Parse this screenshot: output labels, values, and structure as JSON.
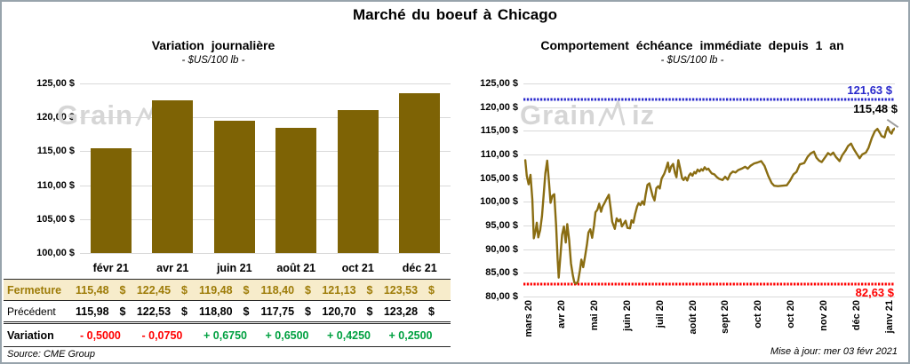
{
  "page": {
    "title": "Marché du boeuf à Chicago",
    "source": "Source: CME Group",
    "updated": "Mise à jour: mer 03 févr 2021",
    "watermark": "GrainWiz"
  },
  "colors": {
    "gold": "#7E6305",
    "gold_text": "#9E7C08",
    "line_gold": "#8A6D12",
    "blue": "#2929CC",
    "red": "#FF0000",
    "green": "#00A040",
    "cream": "#F7ECCB",
    "grid": "#D9D9D9",
    "watermark": "#D6D6D6",
    "frame": "#98A4AC"
  },
  "left_chart": {
    "title": "Variation journalière",
    "subtitle": "- $US/100 lb -",
    "y_ticks": [
      "125,00 $",
      "120,00 $",
      "115,00 $",
      "110,00 $",
      "105,00 $",
      "100,00 $"
    ]
  },
  "right_chart": {
    "title": "Comportement échéance immédiate depuis 1 an",
    "subtitle": "- $US/100 lb -",
    "y_ticks": [
      "125,00 $",
      "120,00 $",
      "115,00 $",
      "110,00 $",
      "105,00 $",
      "100,00 $",
      "95,00 $",
      "90,00 $",
      "85,00 $",
      "80,00 $"
    ],
    "x_ticks": [
      "mars 20",
      "avr 20",
      "mai 20",
      "juin 20",
      "juil 20",
      "août 20",
      "sept 20",
      "oct 20",
      "oct 20",
      "nov 20",
      "déc 20",
      "janv 21"
    ],
    "resistance_label": "121,63 $",
    "last_label": "115,48 $",
    "support_label": "82,63 $"
  },
  "table": {
    "columns": [
      "févr 21",
      "avr 21",
      "juin 21",
      "août 21",
      "oct 21",
      "déc 21"
    ],
    "currency": "$",
    "rows": [
      {
        "label": "Fermeture",
        "style": "fermeture",
        "values": [
          "115,48",
          "122,45",
          "119,48",
          "118,40",
          "121,13",
          "123,53"
        ]
      },
      {
        "label": "Précédent",
        "style": "precedent",
        "values": [
          "115,98",
          "122,53",
          "118,80",
          "117,75",
          "120,70",
          "123,28"
        ]
      },
      {
        "label": "Variation",
        "style": "variation",
        "values": [
          "- 0,5000",
          "- 0,0750",
          "+ 0,6750",
          "+ 0,6500",
          "+ 0,4250",
          "+ 0,2500"
        ]
      }
    ]
  },
  "chart_data": [
    {
      "type": "bar",
      "title": "Variation journalière",
      "subtitle": "- $US/100 lb -",
      "unit": "$US/100 lb",
      "categories": [
        "févr 21",
        "avr 21",
        "juin 21",
        "août 21",
        "oct 21",
        "déc 21"
      ],
      "values": [
        115.48,
        122.45,
        119.48,
        118.4,
        121.13,
        123.53
      ],
      "previous": [
        115.98,
        122.53,
        118.8,
        117.75,
        120.7,
        123.28
      ],
      "variation": [
        -0.5,
        -0.075,
        0.675,
        0.65,
        0.425,
        0.25
      ],
      "ylim": [
        100,
        125
      ],
      "ytick_step": 5,
      "grid": true,
      "bar_color": "#7E6305"
    },
    {
      "type": "line",
      "title": "Comportement échéance immédiate depuis 1 an",
      "subtitle": "- $US/100 lb -",
      "unit": "$US/100 lb",
      "ylim": [
        80,
        125
      ],
      "ytick_step": 5,
      "grid": true,
      "line_color": "#8A6D12",
      "x_range": [
        "mars 20",
        "janv 21"
      ],
      "last_value": 115.48,
      "reference_lines": [
        {
          "value": 121.63,
          "label": "121,63 $",
          "color": "#2929CC",
          "style": "dashed"
        },
        {
          "value": 82.63,
          "label": "82,63 $",
          "color": "#FF0000",
          "style": "dashed"
        }
      ],
      "points": [
        [
          0.5,
          108.8
        ],
        [
          0.9,
          105.5
        ],
        [
          1.4,
          103.7
        ],
        [
          1.9,
          105.7
        ],
        [
          2.4,
          100.5
        ],
        [
          2.8,
          92.3
        ],
        [
          3.3,
          94.0
        ],
        [
          3.6,
          95.6
        ],
        [
          4.0,
          92.5
        ],
        [
          4.5,
          94.0
        ],
        [
          5.0,
          97.0
        ],
        [
          5.5,
          102.0
        ],
        [
          5.9,
          106.0
        ],
        [
          6.4,
          108.7
        ],
        [
          6.9,
          104.0
        ],
        [
          7.3,
          99.8
        ],
        [
          7.8,
          101.3
        ],
        [
          8.3,
          101.6
        ],
        [
          8.8,
          95.0
        ],
        [
          9.2,
          88.0
        ],
        [
          9.5,
          84.0
        ],
        [
          10.0,
          89.0
        ],
        [
          10.4,
          93.0
        ],
        [
          10.9,
          94.8
        ],
        [
          11.4,
          91.4
        ],
        [
          11.8,
          95.3
        ],
        [
          12.3,
          92.0
        ],
        [
          12.8,
          87.0
        ],
        [
          13.3,
          84.5
        ],
        [
          13.7,
          83.0
        ],
        [
          14.2,
          82.7
        ],
        [
          14.7,
          83.2
        ],
        [
          15.2,
          85.5
        ],
        [
          15.6,
          87.8
        ],
        [
          16.1,
          86.2
        ],
        [
          16.6,
          88.5
        ],
        [
          17.1,
          91.0
        ],
        [
          17.5,
          93.5
        ],
        [
          18.0,
          94.2
        ],
        [
          18.5,
          92.4
        ],
        [
          19.0,
          95.0
        ],
        [
          19.4,
          97.8
        ],
        [
          19.9,
          98.3
        ],
        [
          20.4,
          99.6
        ],
        [
          20.9,
          97.9
        ],
        [
          21.3,
          99.0
        ],
        [
          21.8,
          99.7
        ],
        [
          22.3,
          100.5
        ],
        [
          23.0,
          101.5
        ],
        [
          23.5,
          98.5
        ],
        [
          23.9,
          95.8
        ],
        [
          24.6,
          94.3
        ],
        [
          25.1,
          96.5
        ],
        [
          25.6,
          95.9
        ],
        [
          26.1,
          96.3
        ],
        [
          26.5,
          94.8
        ],
        [
          27.0,
          95.4
        ],
        [
          27.5,
          96.0
        ],
        [
          28.0,
          94.5
        ],
        [
          28.7,
          94.4
        ],
        [
          29.1,
          96.1
        ],
        [
          29.6,
          95.6
        ],
        [
          30.1,
          97.5
        ],
        [
          30.6,
          99.0
        ],
        [
          31.0,
          99.7
        ],
        [
          31.5,
          99.3
        ],
        [
          32.0,
          100.1
        ],
        [
          32.5,
          99.4
        ],
        [
          32.9,
          101.5
        ],
        [
          33.4,
          103.6
        ],
        [
          33.9,
          103.9
        ],
        [
          34.4,
          102.4
        ],
        [
          34.8,
          101.2
        ],
        [
          35.3,
          100.3
        ],
        [
          35.8,
          102.9
        ],
        [
          36.3,
          103.3
        ],
        [
          36.7,
          102.8
        ],
        [
          37.2,
          104.9
        ],
        [
          37.9,
          105.9
        ],
        [
          38.4,
          107.0
        ],
        [
          38.9,
          108.3
        ],
        [
          39.3,
          106.3
        ],
        [
          39.8,
          107.5
        ],
        [
          40.3,
          108.0
        ],
        [
          40.8,
          106.1
        ],
        [
          41.2,
          105.2
        ],
        [
          41.7,
          108.8
        ],
        [
          42.2,
          107.0
        ],
        [
          42.7,
          105.0
        ],
        [
          43.1,
          104.6
        ],
        [
          43.6,
          105.2
        ],
        [
          44.1,
          104.5
        ],
        [
          44.6,
          105.6
        ],
        [
          45.0,
          106.0
        ],
        [
          45.5,
          105.5
        ],
        [
          46.0,
          106.3
        ],
        [
          46.4,
          106.0
        ],
        [
          46.9,
          106.8
        ],
        [
          47.4,
          106.4
        ],
        [
          47.9,
          106.9
        ],
        [
          48.3,
          106.6
        ],
        [
          48.8,
          107.3
        ],
        [
          49.3,
          106.8
        ],
        [
          49.8,
          107.0
        ],
        [
          50.2,
          106.5
        ],
        [
          50.7,
          106.0
        ],
        [
          51.4,
          105.8
        ],
        [
          52.1,
          105.2
        ],
        [
          52.6,
          104.9
        ],
        [
          53.6,
          104.6
        ],
        [
          54.3,
          105.3
        ],
        [
          55.0,
          104.7
        ],
        [
          55.7,
          105.9
        ],
        [
          56.4,
          106.4
        ],
        [
          57.1,
          106.2
        ],
        [
          57.8,
          106.7
        ],
        [
          59.0,
          107.1
        ],
        [
          59.7,
          107.4
        ],
        [
          60.4,
          107.0
        ],
        [
          61.1,
          107.6
        ],
        [
          62.1,
          108.1
        ],
        [
          63.0,
          108.3
        ],
        [
          64.0,
          108.6
        ],
        [
          64.9,
          107.6
        ],
        [
          65.9,
          105.5
        ],
        [
          66.8,
          104.0
        ],
        [
          67.5,
          103.4
        ],
        [
          68.5,
          103.3
        ],
        [
          69.7,
          103.4
        ],
        [
          70.9,
          103.5
        ],
        [
          71.8,
          104.5
        ],
        [
          72.7,
          105.8
        ],
        [
          73.5,
          106.3
        ],
        [
          74.4,
          107.9
        ],
        [
          75.6,
          108.2
        ],
        [
          76.5,
          109.5
        ],
        [
          77.3,
          110.2
        ],
        [
          78.2,
          110.6
        ],
        [
          78.9,
          109.3
        ],
        [
          79.6,
          108.7
        ],
        [
          80.3,
          108.4
        ],
        [
          81.3,
          109.5
        ],
        [
          82.0,
          110.3
        ],
        [
          82.7,
          109.9
        ],
        [
          83.4,
          110.4
        ],
        [
          84.1,
          109.5
        ],
        [
          85.1,
          108.6
        ],
        [
          85.8,
          109.8
        ],
        [
          86.7,
          110.8
        ],
        [
          87.4,
          111.8
        ],
        [
          88.2,
          112.3
        ],
        [
          88.9,
          111.2
        ],
        [
          89.6,
          110.3
        ],
        [
          90.5,
          109.2
        ],
        [
          91.2,
          110.0
        ],
        [
          92.2,
          110.4
        ],
        [
          92.9,
          111.4
        ],
        [
          93.8,
          113.5
        ],
        [
          94.6,
          114.9
        ],
        [
          95.3,
          115.4
        ],
        [
          96.0,
          114.5
        ],
        [
          96.4,
          113.9
        ],
        [
          97.2,
          113.6
        ],
        [
          97.6,
          114.8
        ],
        [
          98.1,
          115.8
        ],
        [
          98.6,
          114.8
        ],
        [
          99.1,
          114.4
        ],
        [
          99.5,
          115.2
        ],
        [
          100,
          115.48
        ]
      ]
    }
  ]
}
